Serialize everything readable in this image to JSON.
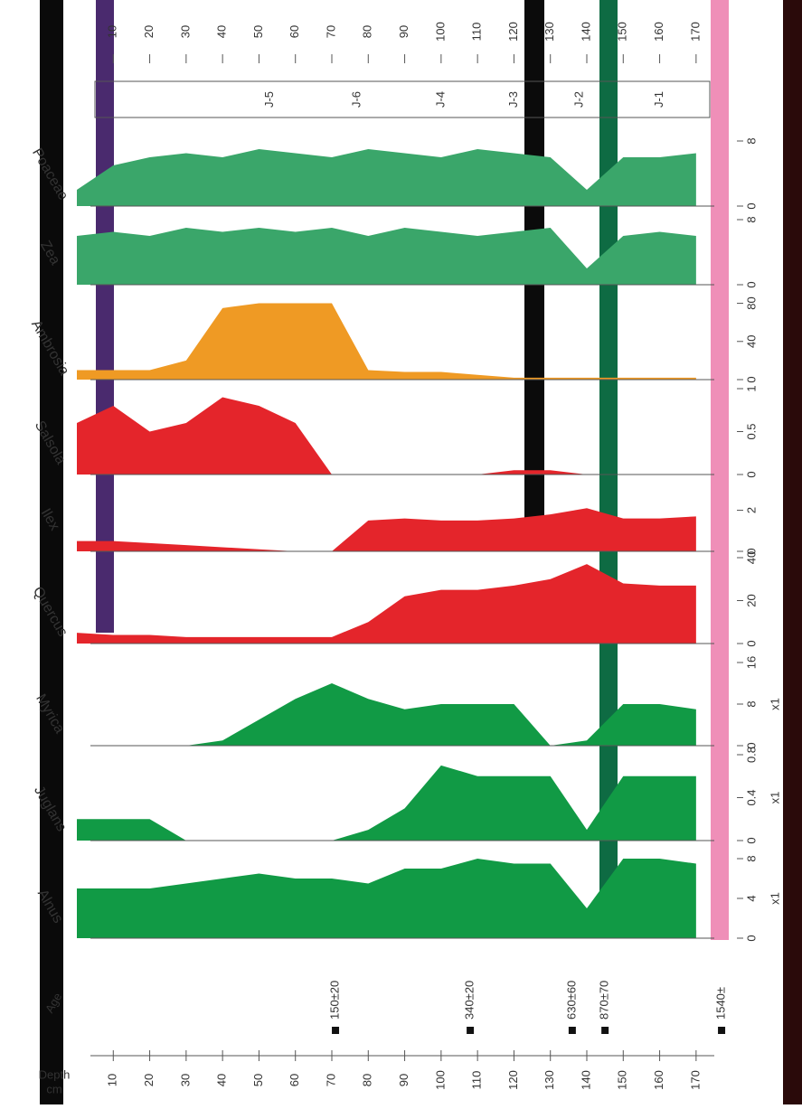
{
  "chart_data": [
    {
      "type": "area",
      "title": "Alnus",
      "color": "#119a45",
      "x": [
        0,
        10,
        20,
        30,
        40,
        50,
        60,
        70,
        80,
        90,
        100,
        110,
        120,
        130,
        140,
        150,
        160,
        170
      ],
      "values": [
        5,
        5,
        5,
        5.5,
        6,
        6.5,
        6,
        6,
        5.5,
        7,
        7,
        8,
        7.5,
        7.5,
        3,
        8,
        8,
        7.5
      ],
      "xlim": [
        0,
        175
      ],
      "ylim": [
        0,
        8
      ],
      "yticks": [
        0,
        4,
        8
      ],
      "scale_label": "x1"
    },
    {
      "type": "area",
      "title": "Juglans",
      "color": "#119a45",
      "x": [
        0,
        10,
        20,
        30,
        40,
        50,
        60,
        70,
        80,
        90,
        100,
        110,
        120,
        130,
        140,
        150,
        160,
        170
      ],
      "values": [
        0.2,
        0.2,
        0.2,
        0,
        0,
        0,
        0,
        0,
        0.1,
        0.3,
        0.7,
        0.6,
        0.6,
        0.6,
        0.1,
        0.6,
        0.6,
        0.6
      ],
      "xlim": [
        0,
        175
      ],
      "ylim": [
        0,
        0.8
      ],
      "yticks": [
        0,
        0.4,
        0.8
      ],
      "scale_label": "x1"
    },
    {
      "type": "area",
      "title": "Myrica",
      "color": "#119a45",
      "x": [
        0,
        10,
        20,
        30,
        40,
        50,
        60,
        70,
        80,
        90,
        100,
        110,
        120,
        130,
        140,
        150,
        160,
        170
      ],
      "values": [
        0,
        0,
        0,
        0,
        1,
        5,
        9,
        12,
        9,
        7,
        8,
        8,
        8,
        0,
        1,
        8,
        8,
        7
      ],
      "xlim": [
        0,
        175
      ],
      "ylim": [
        0,
        16
      ],
      "yticks": [
        0,
        8,
        16
      ],
      "scale_label": "x1"
    },
    {
      "type": "area",
      "title": "Quercus",
      "color": "#e4252b",
      "x": [
        0,
        10,
        20,
        30,
        40,
        50,
        60,
        70,
        80,
        90,
        100,
        110,
        120,
        130,
        140,
        150,
        160,
        170
      ],
      "values": [
        5,
        4,
        4,
        3,
        3,
        3,
        3,
        3,
        10,
        22,
        25,
        25,
        27,
        30,
        37,
        28,
        27,
        27
      ],
      "xlim": [
        0,
        175
      ],
      "ylim": [
        0,
        40
      ],
      "yticks": [
        0,
        20,
        40
      ]
    },
    {
      "type": "area",
      "title": "Ilex",
      "color": "#e4252b",
      "x": [
        0,
        10,
        20,
        30,
        40,
        50,
        60,
        70,
        80,
        90,
        100,
        110,
        120,
        130,
        140,
        150,
        160,
        170
      ],
      "values": [
        0.5,
        0.5,
        0.4,
        0.3,
        0.2,
        0.1,
        0,
        0,
        1.5,
        1.6,
        1.5,
        1.5,
        1.6,
        1.8,
        2.1,
        1.6,
        1.6,
        1.7
      ],
      "xlim": [
        0,
        175
      ],
      "ylim": [
        0,
        2.2
      ],
      "yticks": [
        0,
        2
      ]
    },
    {
      "type": "area",
      "title": "Salsola",
      "color": "#e4252b",
      "x": [
        0,
        10,
        20,
        30,
        40,
        50,
        60,
        70,
        80,
        90,
        100,
        110,
        120,
        130,
        140,
        150,
        160,
        170
      ],
      "values": [
        0.6,
        0.8,
        0.5,
        0.6,
        0.9,
        0.8,
        0.6,
        0,
        0,
        0,
        0,
        0,
        0.05,
        0.05,
        0,
        0,
        0,
        0
      ],
      "xlim": [
        0,
        175
      ],
      "ylim": [
        0,
        1.0
      ],
      "yticks": [
        0,
        0.5,
        1.0
      ]
    },
    {
      "type": "area",
      "title": "Ambrosia",
      "color": "#ef9a24",
      "x": [
        0,
        10,
        20,
        30,
        40,
        50,
        60,
        70,
        80,
        90,
        100,
        110,
        120,
        130,
        140,
        150,
        160,
        170
      ],
      "values": [
        10,
        10,
        10,
        20,
        75,
        80,
        80,
        80,
        10,
        8,
        8,
        5,
        2,
        2,
        2,
        2,
        2,
        2
      ],
      "xlim": [
        0,
        175
      ],
      "ylim": [
        0,
        90
      ],
      "yticks": [
        0,
        40,
        80
      ]
    },
    {
      "type": "area",
      "title": "Zea",
      "color": "#3aa66a",
      "x": [
        0,
        10,
        20,
        30,
        40,
        50,
        60,
        70,
        80,
        90,
        100,
        110,
        120,
        130,
        140,
        150,
        160,
        170
      ],
      "values": [
        6,
        6.5,
        6,
        7,
        6.5,
        7,
        6.5,
        7,
        6,
        7,
        6.5,
        6,
        6.5,
        7,
        2,
        6,
        6.5,
        6
      ],
      "xlim": [
        0,
        175
      ],
      "ylim": [
        0,
        10
      ],
      "yticks": [
        0,
        8
      ]
    },
    {
      "type": "area",
      "title": "Poaceae",
      "color": "#3aa66a",
      "x": [
        0,
        10,
        20,
        30,
        40,
        50,
        60,
        70,
        80,
        90,
        100,
        110,
        120,
        130,
        140,
        150,
        160,
        170
      ],
      "values": [
        2,
        5,
        6,
        6.5,
        6,
        7,
        6.5,
        6,
        7,
        6.5,
        6,
        7,
        6.5,
        6,
        2,
        6,
        6,
        6.5
      ],
      "xlim": [
        0,
        175
      ],
      "ylim": [
        0,
        10
      ],
      "yticks": [
        0,
        8
      ]
    }
  ],
  "depth_axis": {
    "title": "Depth",
    "unit": "cm",
    "lim": [
      0,
      175
    ],
    "ticks": [
      10,
      20,
      30,
      40,
      50,
      60,
      70,
      80,
      90,
      100,
      110,
      120,
      130,
      140,
      150,
      160,
      170
    ]
  },
  "age": {
    "title": "Age",
    "dates": [
      {
        "depth": 71,
        "label": "150±20"
      },
      {
        "depth": 108,
        "label": "340±20"
      },
      {
        "depth": 136,
        "label": "630±60"
      },
      {
        "depth": 145,
        "label": "870±70"
      },
      {
        "depth": 177,
        "label": "1540±"
      }
    ]
  },
  "zones": [
    {
      "label": "J-5",
      "depth": 53
    },
    {
      "label": "J-6",
      "depth": 77
    },
    {
      "label": "J-4",
      "depth": 100
    },
    {
      "label": "J-3",
      "depth": 120
    },
    {
      "label": "J-2",
      "depth": 138
    },
    {
      "label": "J-1",
      "depth": 160
    }
  ]
}
